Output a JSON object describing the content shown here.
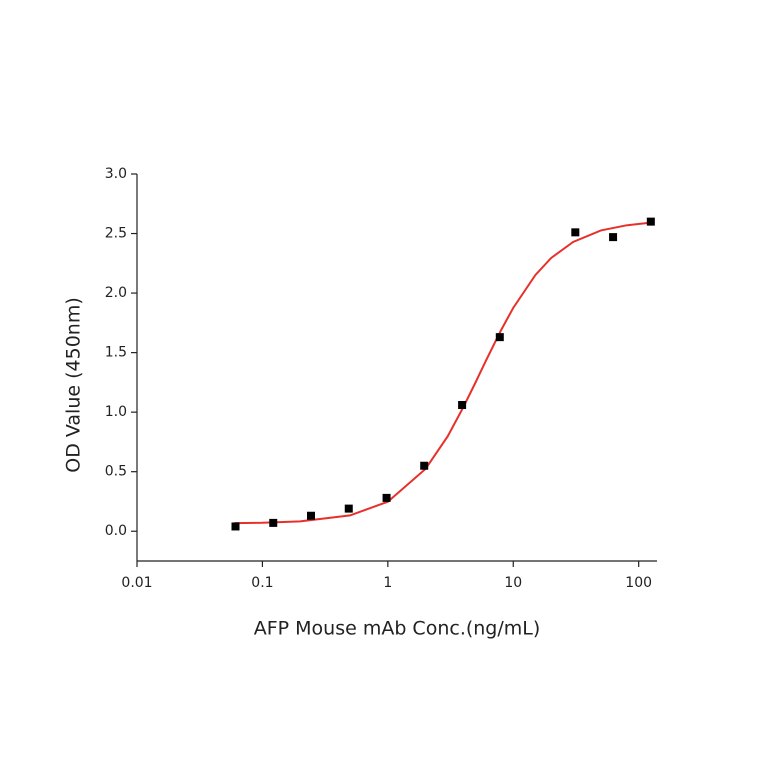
{
  "chart_data": {
    "type": "scatter",
    "x_label": "AFP Mouse mAb Conc.(ng/mL)",
    "y_label": "OD Value (450nm)",
    "x_log": true,
    "xlim": [
      0.01,
      140
    ],
    "xticks": [
      0.01,
      0.1,
      1,
      10,
      100
    ],
    "ylim": [
      -0.25,
      3.0
    ],
    "yticks": [
      {
        "value": 0,
        "label": "0.0"
      },
      0.5,
      {
        "value": 1,
        "label": "1.0"
      },
      1.5,
      {
        "value": 2,
        "label": "2.0"
      },
      2.5,
      {
        "value": 3,
        "label": "3.0"
      }
    ],
    "grid": false,
    "series": [
      {
        "color": "#000000",
        "x": [
          0.061,
          0.122,
          0.244,
          0.488,
          0.977,
          1.95,
          3.91,
          7.81,
          31.25,
          62.5,
          125
        ],
        "values": [
          0.04,
          0.07,
          0.13,
          0.19,
          0.28,
          0.55,
          1.06,
          1.63,
          2.51,
          2.47,
          2.6
        ]
      }
    ],
    "fit": {
      "color": "#e8302a",
      "x": [
        0.06,
        0.1,
        0.2,
        0.5,
        1,
        2,
        3,
        4,
        5,
        6,
        7,
        8,
        10,
        15,
        20,
        30,
        50,
        80,
        125
      ],
      "values": [
        0.068,
        0.071,
        0.083,
        0.133,
        0.248,
        0.524,
        0.797,
        1.042,
        1.249,
        1.424,
        1.567,
        1.689,
        1.876,
        2.151,
        2.294,
        2.429,
        2.526,
        2.569,
        2.592
      ]
    }
  }
}
